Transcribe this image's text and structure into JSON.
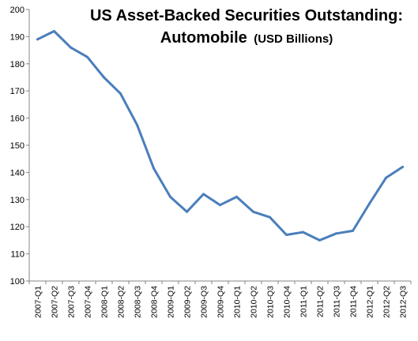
{
  "chart_data": {
    "type": "line",
    "title": "US Asset-Backed Securities Outstanding:",
    "title_line2": "Automobile",
    "title_unit": "(USD Billions)",
    "xlabel": "",
    "ylabel": "",
    "categories": [
      "2007-Q1",
      "2007-Q2",
      "2007-Q3",
      "2007-Q4",
      "2008-Q1",
      "2008-Q2",
      "2008-Q3",
      "2008-Q4",
      "2009-Q1",
      "2009-Q2",
      "2009-Q3",
      "2009-Q4",
      "2010-Q1",
      "2010-Q2",
      "2010-Q3",
      "2010-Q4",
      "2011-Q1",
      "2011-Q2",
      "2011-Q3",
      "2011-Q4",
      "2012-Q1",
      "2012-Q2",
      "2012-Q3"
    ],
    "series": [
      {
        "values": [
          189,
          192,
          186,
          182.5,
          175,
          169,
          157.5,
          141.5,
          131,
          125.5,
          132,
          128,
          131,
          125.5,
          123.5,
          117,
          118,
          115,
          117.5,
          118.5,
          128.5,
          138,
          142
        ],
        "color": "#4a7ebb"
      }
    ],
    "ylim": [
      100,
      200
    ],
    "yticks": [
      100,
      110,
      120,
      130,
      140,
      150,
      160,
      170,
      180,
      190,
      200
    ],
    "grid": false,
    "legend": "none"
  }
}
